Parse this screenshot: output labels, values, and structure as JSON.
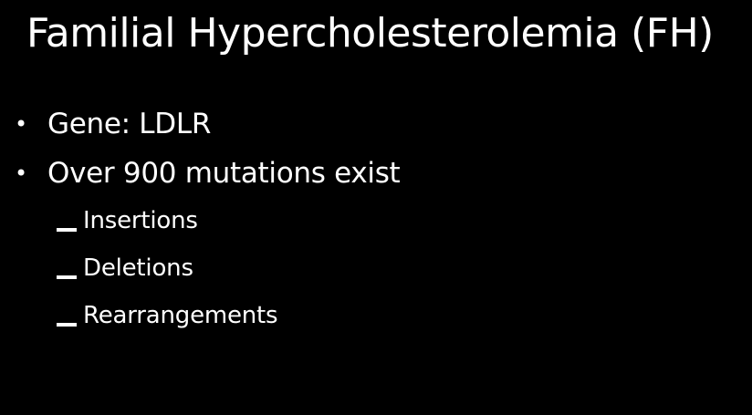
{
  "slide": {
    "title": "Familial Hypercholesterolemia (FH)",
    "bullets": [
      {
        "marker": "•",
        "text": "Gene: LDLR"
      },
      {
        "marker": "•",
        "text": "Over 900 mutations exist"
      }
    ],
    "sub_bullets": [
      {
        "text": "Insertions"
      },
      {
        "text": "Deletions"
      },
      {
        "text": "Rearrangements"
      }
    ],
    "colors": {
      "background": "#000000",
      "text": "#ffffff"
    }
  }
}
